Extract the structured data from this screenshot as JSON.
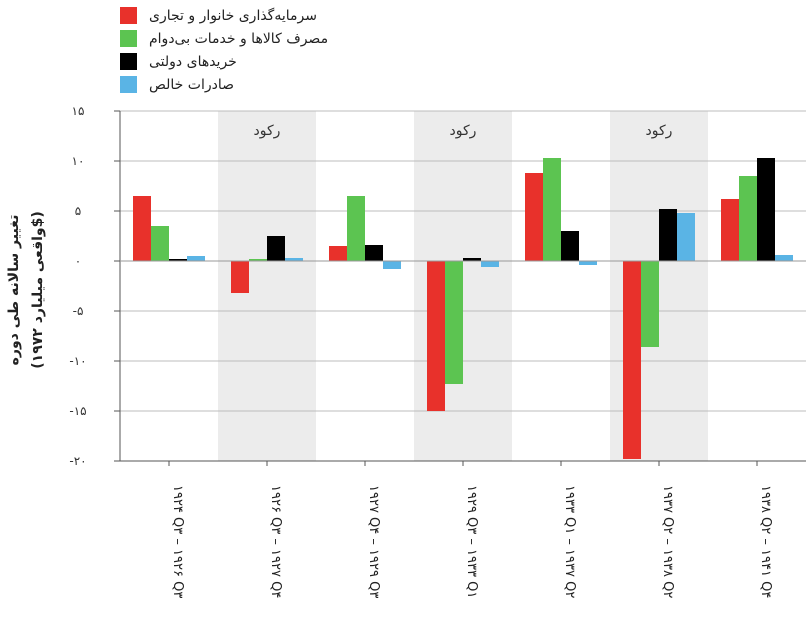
{
  "legend": [
    {
      "label": "سرمایه‌گذاری خانوار و تجاری",
      "color": "#e8312b"
    },
    {
      "label": "مصرف کالاها و خدمات بی‌دوام",
      "color": "#5cc451"
    },
    {
      "label": "خریدهای دولتی",
      "color": "#000000"
    },
    {
      "label": "صادرات خالص",
      "color": "#5ab4e5"
    }
  ],
  "chart_data": {
    "type": "bar",
    "categories": [
      "۱۹۲۴ Q۳ – ۱۹۲۶ Q۳",
      "۱۹۲۶ Q۳ – ۱۹۲۷ Q۴",
      "۱۹۲۷ Q۴ – ۱۹۲۹ Q۳",
      "۱۹۲۹ Q۳ – ۱۹۳۳ Q۱",
      "۱۹۳۳ Q۱ – ۱۹۳۷ Q۲",
      "۱۹۳۷ Q۲ – ۱۹۳۸ Q۲",
      "۱۹۳۸ Q۲ – ۱۹۴۱ Q۴"
    ],
    "series": [
      {
        "name": "سرمایه‌گذاری خانوار و تجاری",
        "color": "#e8312b",
        "values": [
          6.5,
          -3.2,
          1.5,
          -15.0,
          8.8,
          -19.8,
          6.2
        ]
      },
      {
        "name": "مصرف کالاها و خدمات بی‌دوام",
        "color": "#5cc451",
        "values": [
          3.5,
          0.2,
          6.5,
          -12.3,
          10.3,
          -8.6,
          8.5
        ]
      },
      {
        "name": "خریدهای دولتی",
        "color": "#000000",
        "values": [
          0.2,
          2.5,
          1.6,
          0.3,
          3.0,
          5.2,
          10.3
        ]
      },
      {
        "name": "صادرات خالص",
        "color": "#5ab4e5",
        "values": [
          0.5,
          0.3,
          -0.8,
          -0.6,
          -0.4,
          4.8,
          0.6
        ]
      }
    ],
    "ylabel_line1": "تغییر سالانه طی دوره",
    "ylabel_line2": "(۱۹۷۲ واقعی میلیارد$)",
    "ylim": [
      -20,
      15
    ],
    "yticks": [
      15,
      10,
      5,
      0,
      -5,
      -10,
      -15,
      -20
    ],
    "ytick_labels": [
      "۱۵",
      "۱۰",
      "۵",
      "۰",
      "-۵",
      "-۱۰",
      "-۱۵",
      "-۲۰"
    ],
    "recession_label": "رکود",
    "recession_categories": [
      1,
      3,
      5
    ],
    "grid": true
  }
}
